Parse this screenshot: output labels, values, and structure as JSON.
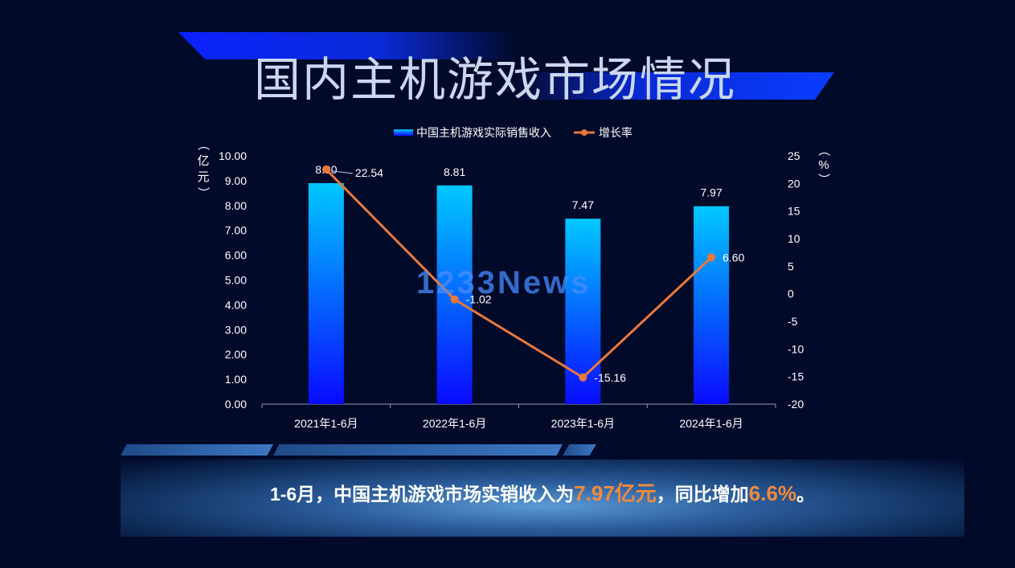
{
  "title": "国内主机游戏市场情况",
  "watermark": "1233News",
  "chart_data": {
    "type": "bar",
    "categories": [
      "2021年1-6月",
      "2022年1-6月",
      "2023年1-6月",
      "2024年1-6月"
    ],
    "series": [
      {
        "name": "中国主机游戏实际销售收入",
        "type": "bar",
        "axis": "left",
        "values": [
          8.9,
          8.81,
          7.47,
          7.97
        ],
        "labels": [
          "8.90",
          "8.81",
          "7.47",
          "7.97"
        ]
      },
      {
        "name": "增长率",
        "type": "line",
        "axis": "right",
        "values": [
          22.54,
          -1.02,
          -15.16,
          6.6
        ],
        "labels": [
          "22.54",
          "-1.02",
          "-15.16",
          "6.60"
        ]
      }
    ],
    "y_left": {
      "label": "（亿元）",
      "ylim": [
        0,
        10
      ],
      "ticks": [
        "0.00",
        "1.00",
        "2.00",
        "3.00",
        "4.00",
        "5.00",
        "6.00",
        "7.00",
        "8.00",
        "9.00",
        "10.00"
      ]
    },
    "y_right": {
      "label": "（%）",
      "ylim": [
        -20,
        25
      ],
      "ticks": [
        "-20",
        "-15",
        "-10",
        "-5",
        "0",
        "5",
        "10",
        "15",
        "20",
        "25"
      ]
    },
    "legend": "top",
    "grid": false,
    "colors": {
      "bar_top": "#00c8ff",
      "bar_bottom": "#0a0aff",
      "line": "#e8783c",
      "text": "#ffffff",
      "axis": "#8a9bb8"
    }
  },
  "summary": {
    "prefix": "1-6月，中国主机游戏市场实销收入为",
    "revenue": "7.97亿元",
    "middle": "，同比增加",
    "growth": "6.6%",
    "suffix": "。"
  }
}
